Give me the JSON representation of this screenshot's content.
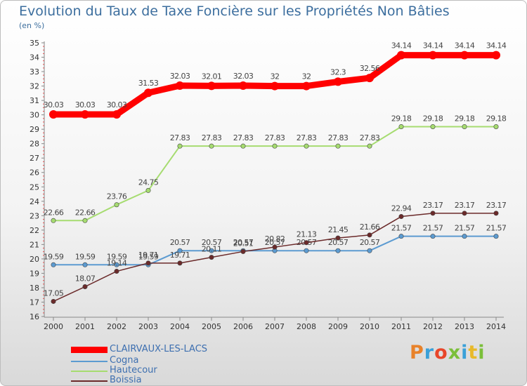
{
  "title": "Evolution du Taux de Taxe Foncière sur les Propriétés Non Bâties",
  "unit_label": "(en %)",
  "logo_text": "Proxiti",
  "chart_data": {
    "type": "line",
    "x": [
      "2000",
      "2001",
      "2002",
      "2003",
      "2004",
      "2005",
      "2006",
      "2007",
      "2008",
      "2009",
      "2010",
      "2011",
      "2012",
      "2013",
      "2014"
    ],
    "ylim": [
      16,
      35
    ],
    "yticks": [
      16,
      17,
      18,
      19,
      20,
      21,
      22,
      23,
      24,
      25,
      26,
      27,
      28,
      29,
      30,
      31,
      32,
      33,
      34,
      35
    ],
    "grid": false,
    "legend_position": "bottom-left",
    "series": [
      {
        "name": "CLAIRVAUX-LES-LACS",
        "color": "#ff0000",
        "width": 9,
        "values": [
          30.03,
          30.03,
          30.03,
          31.53,
          32.03,
          32.01,
          32.03,
          32,
          32,
          32.3,
          32.56,
          34.14,
          34.14,
          34.14,
          34.14
        ],
        "labels": [
          "30.03",
          "30.03",
          "30.03",
          "31.53",
          "32.03",
          "32.01",
          "32.03",
          "32",
          "32",
          "32.3",
          "32.56",
          "34.14",
          "34.14",
          "34.14",
          "34.14"
        ]
      },
      {
        "name": "Cogna",
        "color": "#5c9bd1",
        "width": 2,
        "values": [
          19.59,
          19.59,
          19.59,
          19.59,
          20.57,
          20.57,
          20.57,
          20.57,
          20.57,
          20.57,
          20.57,
          21.57,
          21.57,
          21.57,
          21.57
        ],
        "labels": [
          "19.59",
          "19.59",
          "19.59",
          "19.59",
          "20.57",
          "20.57",
          "20.57",
          "20.57",
          "20.57",
          "20.57",
          "20.57",
          "21.57",
          "21.57",
          "21.57",
          "21.57"
        ]
      },
      {
        "name": "Hautecour",
        "color": "#a6dc70",
        "width": 2,
        "values": [
          22.66,
          22.66,
          23.76,
          24.75,
          27.83,
          27.83,
          27.83,
          27.83,
          27.83,
          27.83,
          27.83,
          29.18,
          29.18,
          29.18,
          29.18
        ],
        "labels": [
          "22.66",
          "22.66",
          "23.76",
          "24.75",
          "27.83",
          "27.83",
          "27.83",
          "27.83",
          "27.83",
          "27.83",
          "27.83",
          "29.18",
          "29.18",
          "29.18",
          "29.18"
        ]
      },
      {
        "name": "Boissia",
        "color": "#6b2a2a",
        "width": 1.5,
        "values": [
          17.05,
          18.07,
          19.14,
          19.71,
          19.71,
          20.11,
          20.51,
          20.82,
          21.13,
          21.45,
          21.66,
          22.94,
          23.17,
          23.17,
          23.17
        ],
        "labels": [
          "17.05",
          "18.07",
          "19.14",
          "19.71",
          "19.71",
          "20.11",
          "20.51",
          "20.82",
          "21.13",
          "21.45",
          "21.66",
          "22.94",
          "23.17",
          "23.17",
          "23.17"
        ]
      }
    ]
  }
}
